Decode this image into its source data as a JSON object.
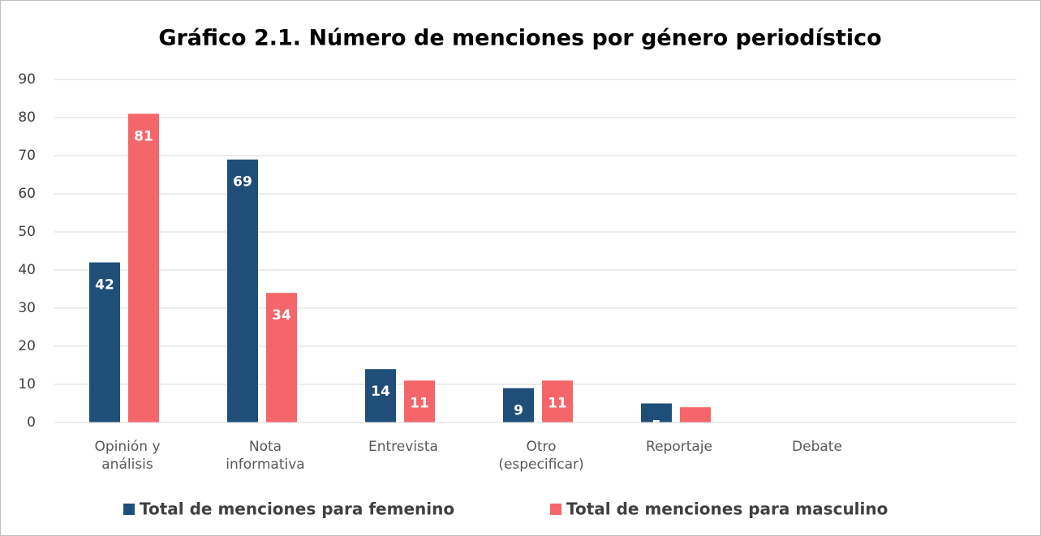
{
  "chart_data": {
    "type": "bar",
    "title": "Gráfico 2.1. Número de menciones por género periodístico",
    "categories": [
      "Opinión y\nanálisis",
      "Nota\ninformativa",
      "Entrevista",
      "Otro\n(especificar)",
      "Reportaje",
      "Debate"
    ],
    "series": [
      {
        "name": "Total de menciones para femenino",
        "color": "#1f4e79",
        "values": [
          42,
          69,
          14,
          9,
          5,
          0
        ]
      },
      {
        "name": "Total de menciones para masculino",
        "color": "#f4666a",
        "values": [
          81,
          34,
          11,
          11,
          4,
          0
        ]
      }
    ],
    "ylim": [
      0,
      90
    ],
    "yticks": [
      0,
      10,
      20,
      30,
      40,
      50,
      60,
      70,
      80,
      90
    ],
    "grid": true,
    "legend": "bottom"
  }
}
